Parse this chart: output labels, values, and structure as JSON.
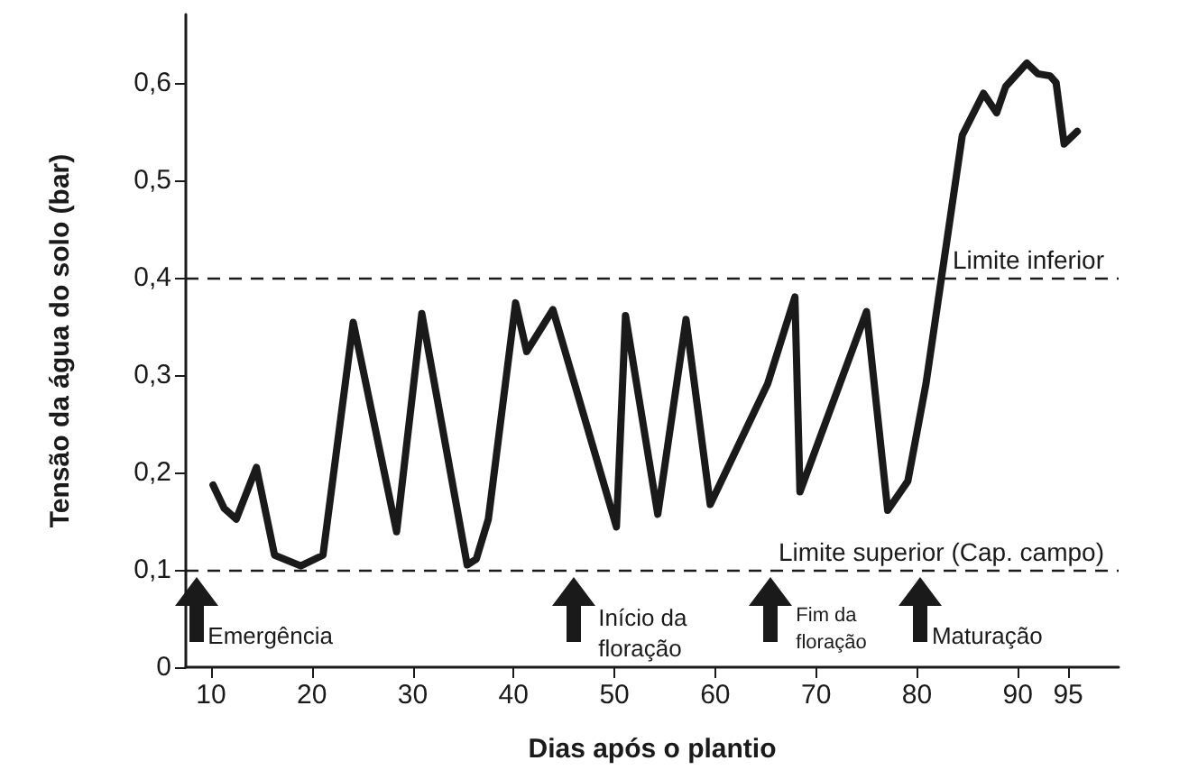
{
  "chart_data": {
    "type": "line",
    "xlabel": "Dias após o plantio",
    "ylabel": "Tensão da água do solo (bar)",
    "x": [
      10.2,
      11.3,
      12.5,
      14.5,
      16.3,
      18.9,
      21.1,
      24.1,
      28.4,
      30.9,
      35.4,
      36.3,
      37.5,
      40.2,
      41.3,
      43.9,
      50.2,
      51.1,
      54.3,
      57.1,
      59.5,
      65.2,
      67.9,
      68.4,
      75.0,
      77.1,
      79.1,
      80.9,
      84.5,
      86.6,
      87.9,
      88.8,
      90.9,
      92.0,
      93.2,
      93.8,
      94.6,
      95.9
    ],
    "series": [
      {
        "color": "#1a1a1a",
        "values": [
          0.187,
          0.163,
          0.152,
          0.205,
          0.115,
          0.104,
          0.115,
          0.354,
          0.139,
          0.363,
          0.105,
          0.111,
          0.152,
          0.374,
          0.324,
          0.367,
          0.144,
          0.361,
          0.157,
          0.357,
          0.167,
          0.291,
          0.38,
          0.18,
          0.365,
          0.161,
          0.191,
          0.291,
          0.546,
          0.589,
          0.569,
          0.596,
          0.62,
          0.609,
          0.607,
          0.6,
          0.537,
          0.55
        ]
      }
    ],
    "xlim": [
      7.5,
      100
    ],
    "xticks": [
      10,
      20,
      30,
      40,
      50,
      60,
      70,
      80,
      90,
      95
    ],
    "ylim": [
      0,
      0.67
    ],
    "yticks": [
      0,
      {
        "value": 0.1,
        "label": "0,1"
      },
      {
        "value": 0.2,
        "label": "0,2"
      },
      {
        "value": 0.3,
        "label": "0,3"
      },
      {
        "value": 0.4,
        "label": "0,4"
      },
      {
        "value": 0.5,
        "label": "0,5"
      },
      {
        "value": 0.6,
        "label": "0,6"
      }
    ],
    "ref_lines": [
      {
        "axis": "y",
        "value": 0.4,
        "label": "Limite inferior",
        "line_style": "dashed"
      },
      {
        "axis": "y",
        "value": 0.1,
        "label": "Limite superior (Cap. campo)",
        "line_style": "dashed"
      }
    ],
    "annotations": [
      {
        "text": "Emergência",
        "x": 8.6,
        "y": 0.1
      },
      {
        "text": "Início da\nfloração",
        "x": 45.9,
        "y": 0.1
      },
      {
        "text": "Fim da\nfloração",
        "x": 65.5,
        "y": 0.1
      },
      {
        "text": "Maturação",
        "x": 80.4,
        "y": 0.1
      }
    ],
    "grid": false,
    "marker": "none",
    "line_style": "solid"
  }
}
